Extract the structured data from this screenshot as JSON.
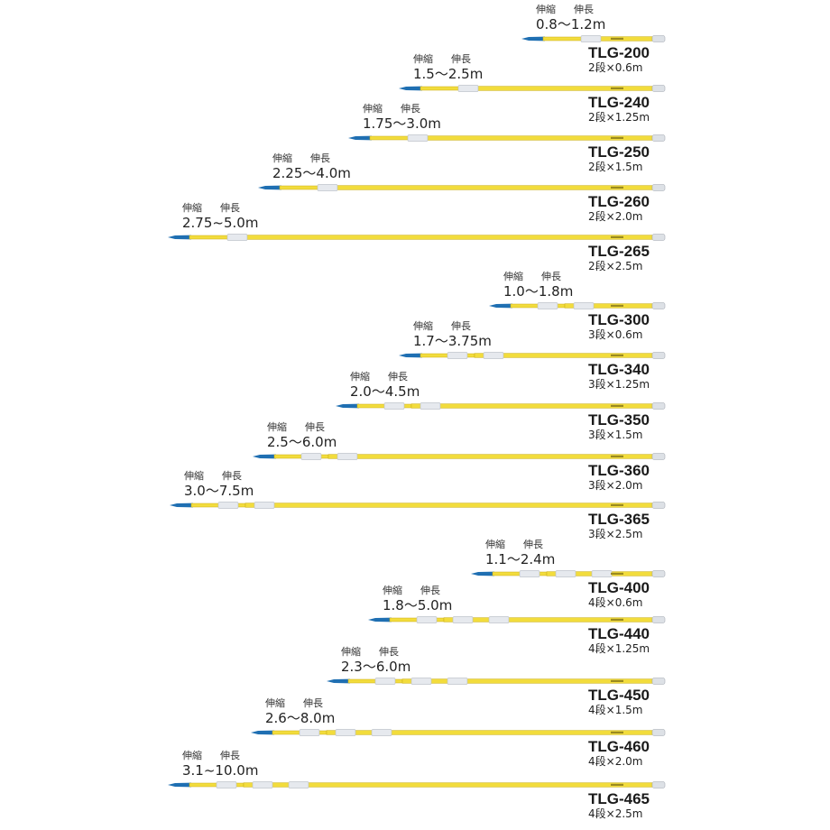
{
  "labels": {
    "retracted": "伸縮",
    "extended": "伸長"
  },
  "colors": {
    "pole": "#f2dc3c",
    "pole_edge": "#c9ad19",
    "tip": "#1f6fb2",
    "collar": "#e6e9ee",
    "end_cap": "#dde1e6"
  },
  "poles": [
    {
      "model": "TLG-200",
      "range": "0.8〜1.2m",
      "spec": "2段×0.6m",
      "stages": 2
    },
    {
      "model": "TLG-240",
      "range": "1.5〜2.5m",
      "spec": "2段×1.25m",
      "stages": 2
    },
    {
      "model": "TLG-250",
      "range": "1.75〜3.0m",
      "spec": "2段×1.5m",
      "stages": 2
    },
    {
      "model": "TLG-260",
      "range": "2.25〜4.0m",
      "spec": "2段×2.0m",
      "stages": 2
    },
    {
      "model": "TLG-265",
      "range": "2.75~5.0m",
      "spec": "2段×2.5m",
      "stages": 2
    },
    {
      "model": "TLG-300",
      "range": "1.0〜1.8m",
      "spec": "3段×0.6m",
      "stages": 3
    },
    {
      "model": "TLG-340",
      "range": "1.7〜3.75m",
      "spec": "3段×1.25m",
      "stages": 3
    },
    {
      "model": "TLG-350",
      "range": "2.0〜4.5m",
      "spec": "3段×1.5m",
      "stages": 3
    },
    {
      "model": "TLG-360",
      "range": "2.5〜6.0m",
      "spec": "3段×2.0m",
      "stages": 3
    },
    {
      "model": "TLG-365",
      "range": "3.0〜7.5m",
      "spec": "3段×2.5m",
      "stages": 3
    },
    {
      "model": "TLG-400",
      "range": "1.1〜2.4m",
      "spec": "4段×0.6m",
      "stages": 4
    },
    {
      "model": "TLG-440",
      "range": "1.8〜5.0m",
      "spec": "4段×1.25m",
      "stages": 4
    },
    {
      "model": "TLG-450",
      "range": "2.3〜6.0m",
      "spec": "4段×1.5m",
      "stages": 4
    },
    {
      "model": "TLG-460",
      "range": "2.6〜8.0m",
      "spec": "4段×2.0m",
      "stages": 4
    },
    {
      "model": "TLG-465",
      "range": "3.1~10.0m",
      "spec": "4段×2.5m",
      "stages": 4
    }
  ]
}
